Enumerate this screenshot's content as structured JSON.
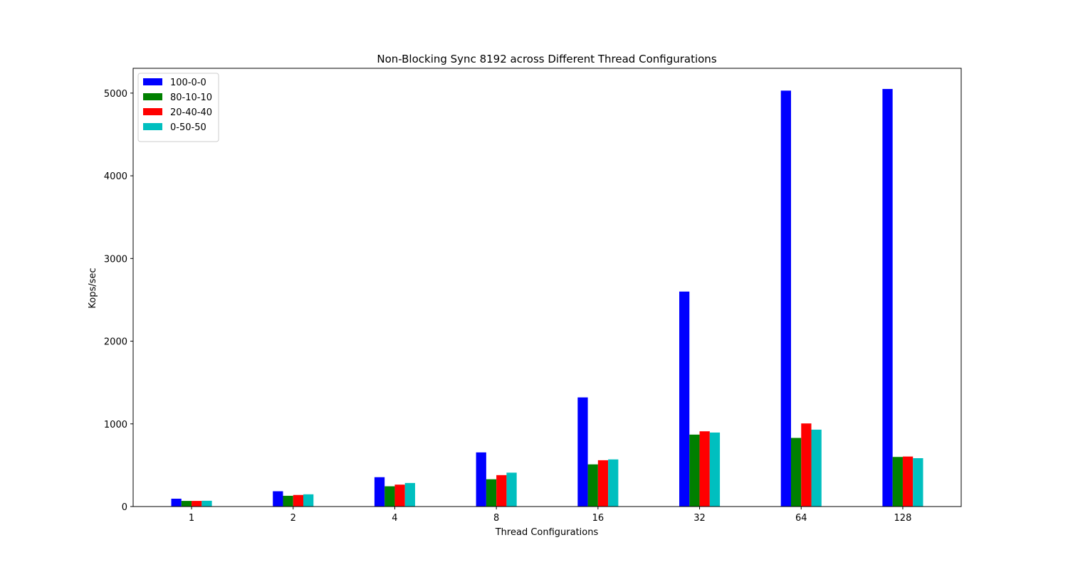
{
  "chart_data": {
    "type": "bar",
    "title": "Non-Blocking Sync 8192 across Different Thread Configurations",
    "xlabel": "Thread Configurations",
    "ylabel": "Kops/sec",
    "categories": [
      "1",
      "2",
      "4",
      "8",
      "16",
      "32",
      "64",
      "128"
    ],
    "ylim": [
      0,
      5300
    ],
    "yticks": [
      0,
      1000,
      2000,
      3000,
      4000,
      5000
    ],
    "grid": false,
    "legend_position": "top-left",
    "series": [
      {
        "name": "100-0-0",
        "color": "#0000ff",
        "values": [
          95,
          185,
          355,
          655,
          1320,
          2600,
          5030,
          5050
        ]
      },
      {
        "name": "80-10-10",
        "color": "#008000",
        "values": [
          68,
          130,
          245,
          330,
          510,
          870,
          830,
          600
        ]
      },
      {
        "name": "20-40-40",
        "color": "#ff0000",
        "values": [
          68,
          140,
          265,
          380,
          560,
          910,
          1005,
          605
        ]
      },
      {
        "name": "0-50-50",
        "color": "#00bfbf",
        "values": [
          70,
          148,
          285,
          410,
          570,
          895,
          930,
          585
        ]
      }
    ]
  }
}
